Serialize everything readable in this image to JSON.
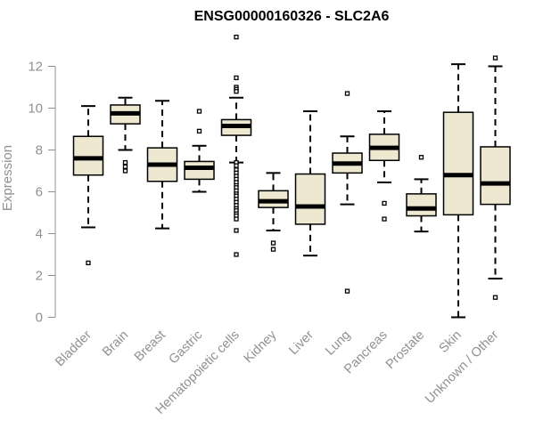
{
  "chart_data": {
    "type": "boxplot",
    "title": "ENSG00000160326 - SLC2A6",
    "xlabel": "",
    "ylabel": "Expression",
    "ylim": [
      0,
      13.5
    ],
    "yticks": [
      0,
      2,
      4,
      6,
      8,
      10,
      12
    ],
    "colors": {
      "box_fill": "#EEE8D0",
      "stroke": "#000000",
      "axis": "#909090"
    },
    "categories": [
      "Bladder",
      "Brain",
      "Breast",
      "Gastric",
      "Hematopoietic cells",
      "Kidney",
      "Liver",
      "Lung",
      "Pancreas",
      "Prostate",
      "Skin",
      "Unknown / Other"
    ],
    "boxes": [
      {
        "name": "Bladder",
        "whisker_low": 4.3,
        "q1": 6.8,
        "median": 7.6,
        "q3": 8.65,
        "whisker_high": 10.1,
        "outliers": [
          2.6
        ]
      },
      {
        "name": "Brain",
        "whisker_low": 8.0,
        "q1": 9.25,
        "median": 9.75,
        "q3": 10.15,
        "whisker_high": 10.5,
        "outliers": [
          7.4,
          7.2,
          7.0
        ]
      },
      {
        "name": "Breast",
        "whisker_low": 4.25,
        "q1": 6.5,
        "median": 7.3,
        "q3": 8.1,
        "whisker_high": 10.35,
        "outliers": []
      },
      {
        "name": "Gastric",
        "whisker_low": 6.0,
        "q1": 6.6,
        "median": 7.15,
        "q3": 7.45,
        "whisker_high": 8.2,
        "outliers": [
          9.85,
          8.9
        ]
      },
      {
        "name": "Hematopoietic cells",
        "whisker_low": 7.4,
        "q1": 8.7,
        "median": 9.15,
        "q3": 9.45,
        "whisker_high": 10.5,
        "outliers": [
          13.4,
          11.45,
          11.0,
          10.9,
          10.8,
          7.4,
          7.25,
          7.05,
          6.9,
          6.75,
          6.6,
          6.45,
          6.3,
          6.2,
          6.05,
          5.9,
          5.8,
          5.65,
          5.5,
          5.35,
          5.2,
          5.1,
          4.95,
          4.85,
          4.7,
          4.15,
          3.0
        ]
      },
      {
        "name": "Kidney",
        "whisker_low": 4.15,
        "q1": 5.25,
        "median": 5.55,
        "q3": 6.05,
        "whisker_high": 6.9,
        "outliers": [
          3.55,
          3.25
        ]
      },
      {
        "name": "Liver",
        "whisker_low": 2.95,
        "q1": 4.45,
        "median": 5.3,
        "q3": 6.85,
        "whisker_high": 9.85,
        "outliers": []
      },
      {
        "name": "Lung",
        "whisker_low": 5.4,
        "q1": 6.9,
        "median": 7.35,
        "q3": 7.85,
        "whisker_high": 8.65,
        "outliers": [
          10.7,
          1.25
        ]
      },
      {
        "name": "Pancreas",
        "whisker_low": 6.45,
        "q1": 7.5,
        "median": 8.1,
        "q3": 8.75,
        "whisker_high": 9.85,
        "outliers": [
          5.45,
          4.7
        ]
      },
      {
        "name": "Prostate",
        "whisker_low": 4.1,
        "q1": 4.85,
        "median": 5.2,
        "q3": 5.9,
        "whisker_high": 6.6,
        "outliers": [
          7.65
        ]
      },
      {
        "name": "Skin",
        "whisker_low": 0.0,
        "q1": 4.9,
        "median": 6.8,
        "q3": 9.8,
        "whisker_high": 12.1,
        "outliers": []
      },
      {
        "name": "Unknown / Other",
        "whisker_low": 1.85,
        "q1": 5.4,
        "median": 6.4,
        "q3": 8.15,
        "whisker_high": 12.0,
        "outliers": [
          12.4,
          0.95
        ]
      }
    ]
  }
}
